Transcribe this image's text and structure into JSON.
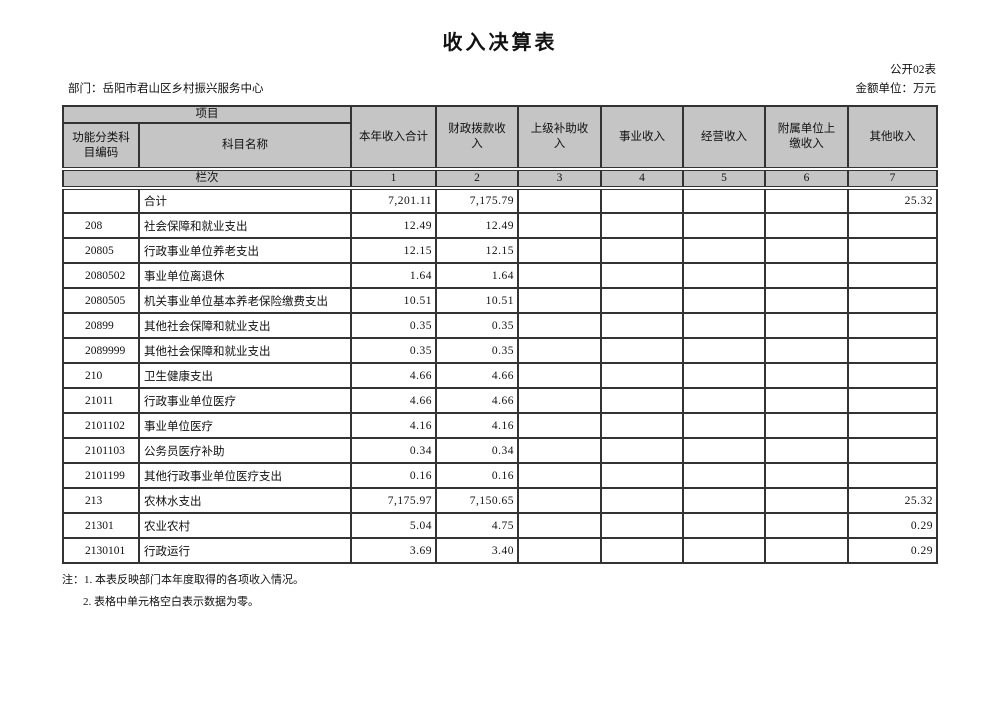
{
  "page": {
    "title": "收入决算表",
    "table_code": "公开02表",
    "department": "部门：岳阳市君山区乡村振兴服务中心",
    "unit": "金额单位：万元"
  },
  "table": {
    "header": {
      "project": "项目",
      "code_label": "功能分类科目编码",
      "name_label": "科目名称",
      "columns": [
        "本年收入合计",
        "财政拨款收入",
        "上级补助收入",
        "事业收入",
        "经营收入",
        "附属单位上缴收入",
        "其他收入"
      ],
      "row_label": "栏次",
      "column_numbers": [
        "1",
        "2",
        "3",
        "4",
        "5",
        "6",
        "7"
      ]
    },
    "rows": [
      {
        "code": "",
        "name": "合计",
        "values": [
          "7,201.11",
          "7,175.79",
          "",
          "",
          "",
          "",
          "25.32"
        ]
      },
      {
        "code": "208",
        "name": "社会保障和就业支出",
        "values": [
          "12.49",
          "12.49",
          "",
          "",
          "",
          "",
          ""
        ]
      },
      {
        "code": "20805",
        "name": "行政事业单位养老支出",
        "values": [
          "12.15",
          "12.15",
          "",
          "",
          "",
          "",
          ""
        ]
      },
      {
        "code": "2080502",
        "name": "事业单位离退休",
        "values": [
          "1.64",
          "1.64",
          "",
          "",
          "",
          "",
          ""
        ]
      },
      {
        "code": "2080505",
        "name": "机关事业单位基本养老保险缴费支出",
        "values": [
          "10.51",
          "10.51",
          "",
          "",
          "",
          "",
          ""
        ]
      },
      {
        "code": "20899",
        "name": "其他社会保障和就业支出",
        "values": [
          "0.35",
          "0.35",
          "",
          "",
          "",
          "",
          ""
        ]
      },
      {
        "code": "2089999",
        "name": "其他社会保障和就业支出",
        "values": [
          "0.35",
          "0.35",
          "",
          "",
          "",
          "",
          ""
        ]
      },
      {
        "code": "210",
        "name": "卫生健康支出",
        "values": [
          "4.66",
          "4.66",
          "",
          "",
          "",
          "",
          ""
        ]
      },
      {
        "code": "21011",
        "name": "行政事业单位医疗",
        "values": [
          "4.66",
          "4.66",
          "",
          "",
          "",
          "",
          ""
        ]
      },
      {
        "code": "2101102",
        "name": "事业单位医疗",
        "values": [
          "4.16",
          "4.16",
          "",
          "",
          "",
          "",
          ""
        ]
      },
      {
        "code": "2101103",
        "name": "公务员医疗补助",
        "values": [
          "0.34",
          "0.34",
          "",
          "",
          "",
          "",
          ""
        ]
      },
      {
        "code": "2101199",
        "name": "其他行政事业单位医疗支出",
        "values": [
          "0.16",
          "0.16",
          "",
          "",
          "",
          "",
          ""
        ]
      },
      {
        "code": "213",
        "name": "农林水支出",
        "values": [
          "7,175.97",
          "7,150.65",
          "",
          "",
          "",
          "",
          "25.32"
        ]
      },
      {
        "code": "21301",
        "name": "农业农村",
        "values": [
          "5.04",
          "4.75",
          "",
          "",
          "",
          "",
          "0.29"
        ]
      },
      {
        "code": "2130101",
        "name": "行政运行",
        "values": [
          "3.69",
          "3.40",
          "",
          "",
          "",
          "",
          "0.29"
        ]
      }
    ]
  },
  "notes": {
    "line1": "注：1. 本表反映部门本年度取得的各项收入情况。",
    "line2": "2. 表格中单元格空白表示数据为零。"
  },
  "colors": {
    "header_bg": "#c5c5c5",
    "border": "#333333",
    "text": "#111111",
    "page_bg": "#ffffff"
  }
}
